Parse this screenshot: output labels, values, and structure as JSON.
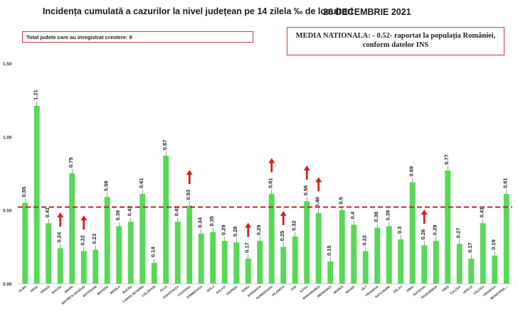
{
  "header": {
    "title": "Incidența cumulată a cazurilor la nivel județean pe 14 zilela ‰ de locuitori",
    "date": "26 DECEMBRIE 2021"
  },
  "info_box": {
    "text": "Total judete care au inregistrat crestere: 9"
  },
  "national_box": {
    "line1": "MEDIA NATIONALA: - 0.52- raportat la populația României,",
    "line2": "conform datelor INS"
  },
  "chart_data": {
    "type": "bar",
    "categories": [
      "ALBA",
      "ARAD",
      "ARGEȘ",
      "BACĂU",
      "BIHOR",
      "BISTRIȚA-NĂSĂUD",
      "BOTOȘANI",
      "BRAȘOV",
      "BRĂILA",
      "BUZĂU",
      "CARAȘ-SEVERIN",
      "CĂLĂRAȘI",
      "CLUJ",
      "CONSTANȚA",
      "COVASNA",
      "DÂMBOVIȚA",
      "DOLJ",
      "GALAȚI",
      "GIURGIU",
      "GORJ",
      "HARGHITA",
      "HUNEDOARA",
      "IALOMIȚA",
      "IAȘI",
      "ILFOV",
      "MARAMUREȘ",
      "MEHEDINȚI",
      "MUREȘ",
      "NEAMȚ",
      "OLT",
      "PRAHOVA",
      "SATU MARE",
      "SĂLAJ",
      "SIBIU",
      "SUCEAVA",
      "TELEORMAN",
      "TIMIȘ",
      "TULCEA",
      "VASLUI",
      "VÂLCEA",
      "VRANCEA",
      "MUNICIPIUL..."
    ],
    "values": [
      0.55,
      1.21,
      0.41,
      0.24,
      0.75,
      0.22,
      0.23,
      0.59,
      0.39,
      0.42,
      0.61,
      0.14,
      0.87,
      0.42,
      0.53,
      0.34,
      0.35,
      0.29,
      0.28,
      0.17,
      0.29,
      0.61,
      0.25,
      0.32,
      0.56,
      0.48,
      0.15,
      0.5,
      0.4,
      0.22,
      0.38,
      0.39,
      0.3,
      0.69,
      0.26,
      0.29,
      0.77,
      0.27,
      0.17,
      0.41,
      0.19,
      0.61
    ],
    "value_labels": [
      "0.55",
      "1.21",
      "0.41",
      "0.24",
      "0.75",
      "0.22",
      "0.23",
      "0.59",
      "0.39",
      "0.42",
      "0.61",
      "0.14",
      "0.87",
      "0.42",
      "0.53",
      "0.34",
      "0.35",
      "0.29",
      "0.28",
      "0.17",
      "0.29",
      "0.61",
      "0.25",
      "0.32",
      "0.56",
      "0.48",
      "0.15",
      "0.5",
      "0.4",
      "0.22",
      "0.38",
      "0.39",
      "0.3",
      "0.69",
      "0.26",
      "0.29",
      "0.77",
      "0.27",
      "0.17",
      "0.41",
      "0.19",
      "0.61"
    ],
    "increase_indices": [
      3,
      5,
      14,
      19,
      21,
      22,
      24,
      25,
      34
    ],
    "reference_line": 0.52,
    "yticks": [
      "0.00",
      "0.50",
      "1.00",
      "1.50"
    ],
    "ylim": [
      0,
      1.5
    ],
    "grid": false,
    "colors": {
      "bar": "#57d957",
      "reference": "#cc1f1f",
      "arrow": "#d42020"
    }
  }
}
